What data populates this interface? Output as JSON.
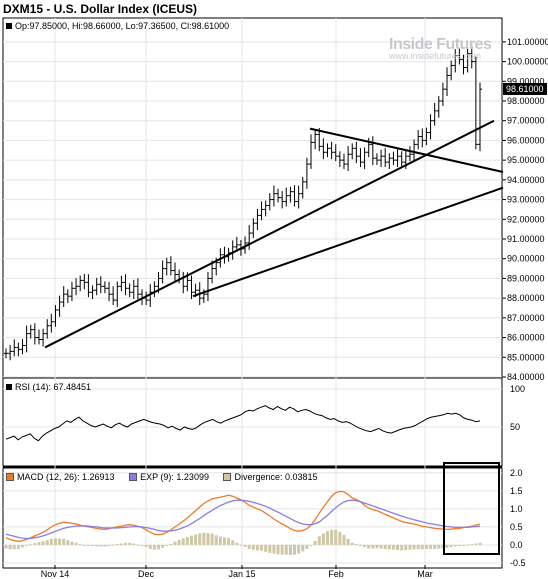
{
  "header": {
    "title": "DXM15 - U.S. Dollar Index (ICEUS)",
    "ohlc": "Op:97.85000, Hi:98.66000, Lo:97.36500, Cl:98.61000"
  },
  "watermark": {
    "brand": "Inside Futures",
    "url": "www.insidefutures.com"
  },
  "colors": {
    "bars": "#000000",
    "grid": "#e4e4e4",
    "macd": "#f07a2a",
    "signal": "#8a7ee0",
    "divergence": "#cfc7a6",
    "highlight_box": "#000000"
  },
  "chart_data": [
    {
      "type": "ohlc",
      "title": "DXM15 - U.S. Dollar Index (ICEUS)",
      "ylim": [
        84,
        101.5
      ],
      "yticks": [
        "101.00000",
        "100.00000",
        "99.00000",
        "98.00000",
        "97.00000",
        "96.00000",
        "95.00000",
        "94.00000",
        "93.00000",
        "92.00000",
        "91.00000",
        "90.00000",
        "89.00000",
        "88.00000",
        "87.00000",
        "86.00000",
        "85.00000",
        "84.00000"
      ],
      "last_price": "98.61000",
      "x_labels": [
        "Nov 14",
        "Dec",
        "Jan 15",
        "Feb",
        "Mar"
      ],
      "grid": true,
      "closes": [
        85.2,
        85.3,
        85.5,
        85.4,
        85.6,
        86.2,
        86.4,
        86.0,
        85.9,
        86.2,
        86.6,
        86.8,
        87.4,
        87.8,
        88.2,
        88.1,
        88.5,
        88.6,
        88.9,
        88.8,
        88.3,
        88.4,
        88.7,
        88.6,
        88.5,
        88.2,
        87.9,
        88.6,
        88.8,
        88.5,
        88.3,
        88.6,
        88.2,
        88.0,
        87.9,
        88.3,
        88.6,
        89.0,
        89.5,
        89.8,
        89.4,
        89.2,
        89.0,
        88.6,
        88.9,
        88.3,
        88.4,
        88.0,
        88.2,
        89.0,
        89.5,
        89.8,
        90.2,
        90.1,
        90.3,
        90.6,
        90.7,
        90.5,
        90.8,
        91.3,
        91.8,
        92.2,
        92.5,
        92.7,
        93.0,
        93.3,
        93.1,
        92.9,
        93.2,
        93.4,
        92.9,
        93.3,
        93.9,
        94.8,
        95.9,
        96.3,
        95.7,
        95.4,
        95.6,
        95.4,
        95.2,
        95.0,
        94.8,
        95.3,
        95.6,
        95.2,
        94.9,
        95.4,
        95.8,
        95.1,
        95.0,
        95.2,
        94.9,
        95.1,
        95.0,
        95.2,
        94.9,
        95.2,
        95.3,
        95.8,
        96.2,
        96.0,
        96.4,
        97.0,
        97.5,
        98.0,
        98.6,
        99.3,
        99.8,
        100.3,
        100.1,
        99.7,
        100.4,
        100.0,
        95.8,
        98.6
      ],
      "trendlines": [
        {
          "from": [
            "Nov 14",
            85.5
          ],
          "to": [
            "right-edge",
            97.0
          ]
        },
        {
          "from": [
            "Jan 15",
            88.1
          ],
          "to": [
            "right-edge",
            93.6
          ]
        },
        {
          "from": [
            "Feb",
            96.6
          ],
          "to": [
            "right-edge",
            94.4
          ]
        }
      ]
    },
    {
      "type": "line",
      "title": "RSI (14): 67.48451",
      "ylim": [
        0,
        100
      ],
      "yticks": [
        "100",
        "50"
      ],
      "values": [
        34,
        36,
        38,
        33,
        37,
        39,
        41,
        35,
        32,
        38,
        42,
        45,
        48,
        50,
        54,
        58,
        56,
        60,
        63,
        58,
        55,
        52,
        50,
        52,
        54,
        51,
        49,
        53,
        55,
        52,
        50,
        54,
        56,
        58,
        60,
        58,
        56,
        55,
        54,
        52,
        49,
        51,
        48,
        46,
        50,
        48,
        47,
        49,
        53,
        56,
        58,
        60,
        57,
        55,
        58,
        60,
        62,
        64,
        66,
        70,
        72,
        71,
        74,
        76,
        78,
        75,
        73,
        77,
        74,
        72,
        76,
        74,
        70,
        72,
        73,
        71,
        68,
        66,
        65,
        62,
        60,
        61,
        58,
        56,
        57,
        55,
        52,
        49,
        47,
        45,
        44,
        46,
        48,
        45,
        43,
        42,
        44,
        46,
        48,
        49,
        50,
        52,
        55,
        58,
        61,
        63,
        64,
        65,
        66,
        68,
        67,
        68,
        66,
        62,
        60,
        59,
        57,
        58
      ],
      "value_label": "67.48451"
    },
    {
      "type": "line",
      "title": "MACD",
      "ylim": [
        -0.5,
        1.8
      ],
      "yticks": [
        "2.0",
        "1.5",
        "1.0",
        "0.5",
        "0.0",
        "-0.5"
      ],
      "series": [
        {
          "name": "MACD (12, 26): 1.26913",
          "values": [
            0.2,
            0.15,
            0.12,
            0.1,
            0.12,
            0.15,
            0.2,
            0.25,
            0.3,
            0.35,
            0.42,
            0.5,
            0.56,
            0.6,
            0.63,
            0.62,
            0.6,
            0.58,
            0.55,
            0.52,
            0.5,
            0.48,
            0.46,
            0.44,
            0.43,
            0.45,
            0.48,
            0.5,
            0.52,
            0.55,
            0.56,
            0.55,
            0.52,
            0.48,
            0.42,
            0.35,
            0.3,
            0.28,
            0.3,
            0.35,
            0.42,
            0.5,
            0.58,
            0.66,
            0.75,
            0.85,
            0.95,
            1.05,
            1.15,
            1.22,
            1.28,
            1.3,
            1.32,
            1.35,
            1.38,
            1.35,
            1.3,
            1.25,
            1.18,
            1.1,
            1.05,
            1.0,
            0.95,
            0.88,
            0.8,
            0.72,
            0.65,
            0.58,
            0.52,
            0.45,
            0.4,
            0.38,
            0.4,
            0.45,
            0.55,
            0.7,
            0.88,
            1.05,
            1.2,
            1.35,
            1.45,
            1.48,
            1.47,
            1.4,
            1.3,
            1.26,
            1.2,
            1.1,
            1.02,
            0.98,
            0.95,
            0.9,
            0.85,
            0.8,
            0.75,
            0.7,
            0.65,
            0.62,
            0.6,
            0.58,
            0.55,
            0.52,
            0.5,
            0.48,
            0.46,
            0.45,
            0.44,
            0.43,
            0.44,
            0.45,
            0.46,
            0.48,
            0.5,
            0.52,
            0.55,
            0.58
          ]
        },
        {
          "name": "EXP (9): 1.23099",
          "values": [
            0.3,
            0.27,
            0.24,
            0.21,
            0.19,
            0.18,
            0.18,
            0.2,
            0.22,
            0.25,
            0.29,
            0.33,
            0.38,
            0.42,
            0.46,
            0.49,
            0.51,
            0.52,
            0.53,
            0.53,
            0.52,
            0.51,
            0.5,
            0.48,
            0.47,
            0.47,
            0.47,
            0.47,
            0.48,
            0.49,
            0.5,
            0.51,
            0.51,
            0.5,
            0.48,
            0.46,
            0.43,
            0.4,
            0.38,
            0.38,
            0.39,
            0.41,
            0.44,
            0.48,
            0.53,
            0.59,
            0.66,
            0.73,
            0.81,
            0.89,
            0.96,
            1.03,
            1.09,
            1.14,
            1.19,
            1.22,
            1.24,
            1.24,
            1.23,
            1.21,
            1.18,
            1.15,
            1.11,
            1.07,
            1.02,
            0.96,
            0.91,
            0.85,
            0.79,
            0.73,
            0.67,
            0.62,
            0.58,
            0.56,
            0.56,
            0.59,
            0.64,
            0.73,
            0.82,
            0.93,
            1.03,
            1.12,
            1.19,
            1.23,
            1.24,
            1.23,
            1.2,
            1.16,
            1.12,
            1.08,
            1.04,
            1.0,
            0.96,
            0.92,
            0.88,
            0.84,
            0.8,
            0.76,
            0.73,
            0.7,
            0.67,
            0.64,
            0.61,
            0.59,
            0.57,
            0.55,
            0.53,
            0.51,
            0.5,
            0.49,
            0.49,
            0.49,
            0.49,
            0.5,
            0.51,
            0.52
          ]
        },
        {
          "name": "Divergence: 0.03815",
          "values": [
            -0.1,
            -0.12,
            -0.12,
            -0.11,
            -0.07,
            -0.03,
            0.02,
            0.05,
            0.08,
            0.1,
            0.13,
            0.17,
            0.18,
            0.18,
            0.17,
            0.13,
            0.09,
            0.06,
            0.02,
            -0.01,
            -0.02,
            -0.03,
            -0.04,
            -0.04,
            -0.04,
            -0.02,
            0.01,
            0.03,
            0.04,
            0.06,
            0.06,
            0.04,
            0.01,
            -0.02,
            -0.06,
            -0.11,
            -0.13,
            -0.12,
            -0.08,
            -0.03,
            0.03,
            0.09,
            0.14,
            0.18,
            0.22,
            0.26,
            0.29,
            0.32,
            0.34,
            0.33,
            0.32,
            0.27,
            0.23,
            0.21,
            0.19,
            0.13,
            0.06,
            0.01,
            -0.05,
            -0.11,
            -0.13,
            -0.15,
            -0.16,
            -0.19,
            -0.22,
            -0.24,
            -0.26,
            -0.27,
            -0.27,
            -0.28,
            -0.27,
            -0.24,
            -0.18,
            -0.11,
            -0.01,
            0.11,
            0.24,
            0.32,
            0.38,
            0.42,
            0.42,
            0.36,
            0.28,
            0.17,
            0.06,
            0.03,
            0.0,
            -0.06,
            -0.1,
            -0.1,
            -0.09,
            -0.1,
            -0.11,
            -0.12,
            -0.13,
            -0.14,
            -0.15,
            -0.14,
            -0.13,
            -0.12,
            -0.12,
            -0.12,
            -0.11,
            -0.11,
            -0.11,
            -0.1,
            -0.09,
            -0.08,
            -0.06,
            -0.04,
            -0.03,
            -0.01,
            0.01,
            0.02,
            0.04,
            0.06
          ]
        }
      ],
      "highlight_box": {
        "x_from_label": "Mar",
        "label": ""
      }
    }
  ]
}
